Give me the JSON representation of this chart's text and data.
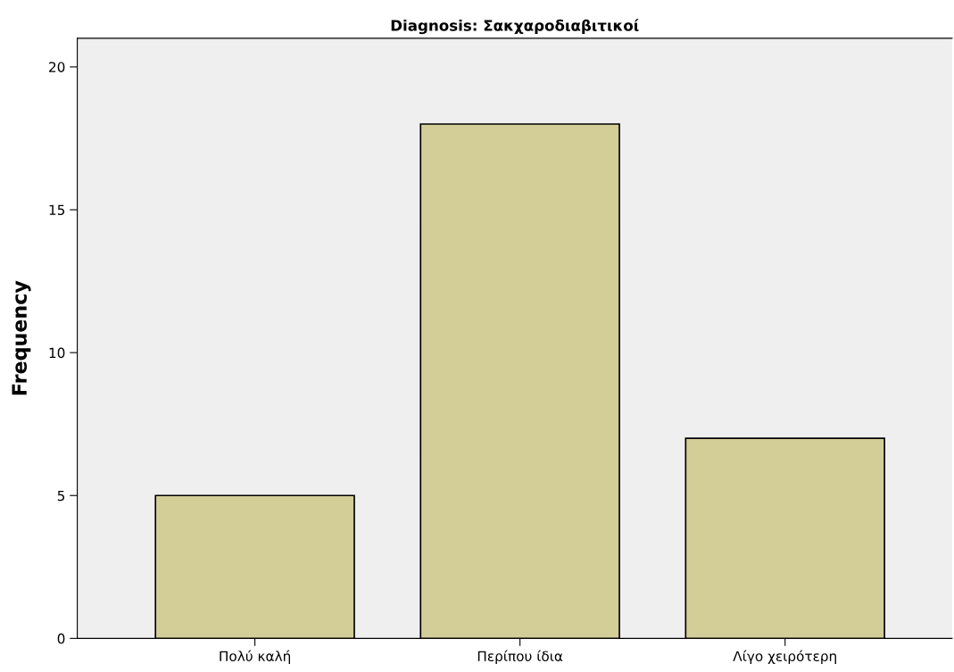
{
  "chart_data": {
    "type": "bar",
    "title": "Diagnosis: Σακχαροδιαβιτικοί",
    "ylabel": "Frequency",
    "categories": [
      "Πολύ καλή",
      "Περίπου ίδια",
      "Λίγο χειρότερη"
    ],
    "values": [
      5,
      18,
      7
    ],
    "color": "#d3ce98",
    "ylim": [
      0,
      21
    ],
    "yticks": [
      0,
      5,
      10,
      15,
      20
    ],
    "grid": false
  }
}
